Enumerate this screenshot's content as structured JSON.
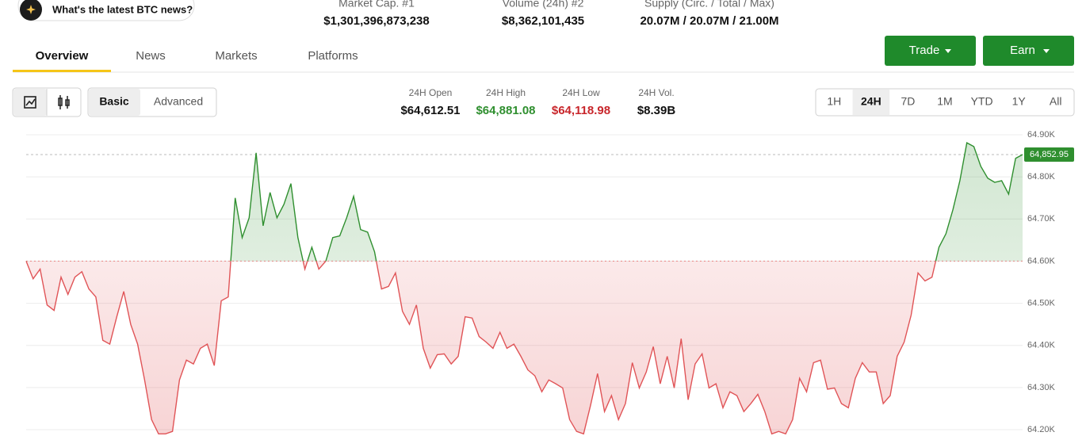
{
  "assistant_prompt": "What's the latest BTC news?",
  "stats": [
    {
      "label": "Market Cap. #1",
      "value": "$1,301,396,873,238"
    },
    {
      "label": "Volume (24h) #2",
      "value": "$8,362,101,435"
    },
    {
      "label": "Supply (Circ. / Total / Max)",
      "value": "20.07M / 20.07M / 21.00M"
    }
  ],
  "tabs": [
    "Overview",
    "News",
    "Markets",
    "Platforms"
  ],
  "actions": [
    "Trade",
    "Earn"
  ],
  "chart_styles": [
    "Basic",
    "Advanced"
  ],
  "ranges": [
    {
      "label": "24H Open",
      "value": "$64,612.51"
    },
    {
      "label": "24H High",
      "value": "$64,881.08"
    },
    {
      "label": "24H Low",
      "value": "$64,118.98"
    },
    {
      "label": "24H Vol.",
      "value": "$8.39B"
    }
  ],
  "timeframes": [
    "1H",
    "24H",
    "7D",
    "1M",
    "YTD",
    "1Y",
    "All"
  ],
  "chart_data": {
    "type": "line",
    "values": [
      64600,
      64558,
      64581,
      64496,
      64483,
      64562,
      64521,
      64562,
      64575,
      64534,
      64515,
      64412,
      64403,
      64468,
      64528,
      64450,
      64403,
      64318,
      64224,
      64190,
      64190,
      64196,
      64318,
      64365,
      64356,
      64393,
      64403,
      64352,
      64506,
      64515,
      64750,
      64656,
      64703,
      64857,
      64684,
      64763,
      64703,
      64735,
      64784,
      64656,
      64581,
      64633,
      64581,
      64600,
      64656,
      64660,
      64703,
      64754,
      64675,
      64669,
      64622,
      64534,
      64540,
      64572,
      64481,
      64450,
      64496,
      64393,
      64346,
      64378,
      64380,
      64356,
      64374,
      64468,
      64465,
      64421,
      64408,
      64393,
      64431,
      64393,
      64403,
      64374,
      64342,
      64328,
      64290,
      64318,
      64309,
      64299,
      64224,
      64196,
      64190,
      64258,
      64333,
      64243,
      64281,
      64224,
      64262,
      64359,
      64299,
      64337,
      64397,
      64309,
      64374,
      64299,
      64416,
      64271,
      64356,
      64380,
      64299,
      64309,
      64252,
      64290,
      64281,
      64243,
      64262,
      64284,
      64243,
      64190,
      64196,
      64190,
      64224,
      64322,
      64290,
      64359,
      64365,
      64296,
      64299,
      64262,
      64252,
      64322,
      64359,
      64337,
      64337,
      64262,
      64281,
      64374,
      64408,
      64472,
      64572,
      64553,
      64562,
      64633,
      64665,
      64722,
      64791,
      64881,
      64872,
      64825,
      64797,
      64787,
      64791,
      64759,
      64844,
      64853
    ],
    "ylim": [
      64185,
      64915
    ],
    "yticks": [
      {
        "value": 64900,
        "label": "64.90K"
      },
      {
        "value": 64800,
        "label": "64.80K"
      },
      {
        "value": 64700,
        "label": "64.70K"
      },
      {
        "value": 64600,
        "label": "64.60K"
      },
      {
        "value": 64500,
        "label": "64.50K"
      },
      {
        "value": 64400,
        "label": "64.40K"
      },
      {
        "value": 64300,
        "label": "64.30K"
      },
      {
        "value": 64200,
        "label": "64.20K"
      }
    ],
    "baseline": 64600,
    "last_price": {
      "value": 64852.95,
      "label": "64,852.95"
    },
    "colors": {
      "up": "#2f8f2f",
      "down": "#e05457"
    },
    "grid": true
  }
}
